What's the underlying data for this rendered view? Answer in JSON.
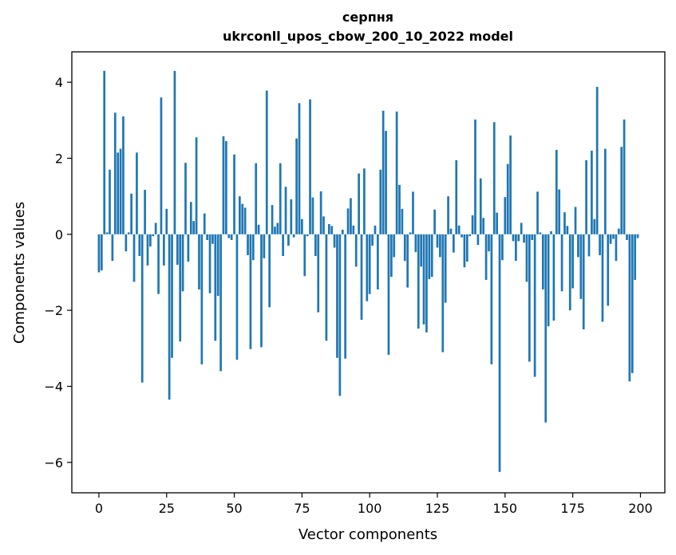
{
  "chart_data": {
    "type": "bar",
    "title": "серпня",
    "subtitle": "ukrconll_upos_cbow_200_10_2022 model",
    "xlabel": "Vector components",
    "ylabel": "Components values",
    "xlim": [
      -10,
      209
    ],
    "ylim": [
      -6.8,
      4.8
    ],
    "xticks": [
      0,
      25,
      50,
      75,
      100,
      125,
      150,
      175,
      200
    ],
    "xtick_labels": [
      "0",
      "25",
      "50",
      "75",
      "100",
      "125",
      "150",
      "175",
      "200"
    ],
    "yticks": [
      -6,
      -4,
      -2,
      0,
      2,
      4
    ],
    "ytick_labels": [
      "−6",
      "−4",
      "−2",
      "0",
      "2",
      "4"
    ],
    "grid": false,
    "bar_color": "#1f77b4",
    "x": [
      0,
      1,
      2,
      3,
      4,
      5,
      6,
      7,
      8,
      9,
      10,
      11,
      12,
      13,
      14,
      15,
      16,
      17,
      18,
      19,
      20,
      21,
      22,
      23,
      24,
      25,
      26,
      27,
      28,
      29,
      30,
      31,
      32,
      33,
      34,
      35,
      36,
      37,
      38,
      39,
      40,
      41,
      42,
      43,
      44,
      45,
      46,
      47,
      48,
      49,
      50,
      51,
      52,
      53,
      54,
      55,
      56,
      57,
      58,
      59,
      60,
      61,
      62,
      63,
      64,
      65,
      66,
      67,
      68,
      69,
      70,
      71,
      72,
      73,
      74,
      75,
      76,
      77,
      78,
      79,
      80,
      81,
      82,
      83,
      84,
      85,
      86,
      87,
      88,
      89,
      90,
      91,
      92,
      93,
      94,
      95,
      96,
      97,
      98,
      99,
      100,
      101,
      102,
      103,
      104,
      105,
      106,
      107,
      108,
      109,
      110,
      111,
      112,
      113,
      114,
      115,
      116,
      117,
      118,
      119,
      120,
      121,
      122,
      123,
      124,
      125,
      126,
      127,
      128,
      129,
      130,
      131,
      132,
      133,
      134,
      135,
      136,
      137,
      138,
      139,
      140,
      141,
      142,
      143,
      144,
      145,
      146,
      147,
      148,
      149,
      150,
      151,
      152,
      153,
      154,
      155,
      156,
      157,
      158,
      159,
      160,
      161,
      162,
      163,
      164,
      165,
      166,
      167,
      168,
      169,
      170,
      171,
      172,
      173,
      174,
      175,
      176,
      177,
      178,
      179,
      180,
      181,
      182,
      183,
      184,
      185,
      186,
      187,
      188,
      189,
      190,
      191,
      192,
      193,
      194,
      195,
      196,
      197,
      198,
      199
    ],
    "values": [
      -1.0,
      -0.95,
      4.3,
      0.05,
      1.7,
      -0.7,
      3.2,
      2.15,
      2.25,
      3.1,
      -0.45,
      0.05,
      1.07,
      -1.25,
      2.15,
      -0.57,
      -3.9,
      1.17,
      -0.82,
      -0.32,
      -0.05,
      0.3,
      -1.57,
      3.6,
      -0.82,
      0.67,
      -4.35,
      -3.25,
      4.3,
      -0.8,
      -2.82,
      -1.5,
      1.88,
      -0.72,
      0.85,
      0.35,
      2.55,
      -1.45,
      -3.42,
      0.55,
      -0.15,
      -1.55,
      -0.25,
      -2.8,
      -1.62,
      -3.6,
      2.58,
      2.45,
      -0.1,
      -0.15,
      2.1,
      -3.3,
      1.0,
      0.8,
      0.7,
      -0.55,
      -3.02,
      -0.68,
      1.87,
      0.25,
      -2.97,
      -0.63,
      3.78,
      -1.92,
      0.77,
      0.2,
      0.3,
      1.87,
      -0.57,
      1.25,
      -0.3,
      0.92,
      -0.08,
      2.52,
      3.45,
      0.4,
      -1.1,
      -0.05,
      3.55,
      0.97,
      -0.57,
      -2.05,
      1.13,
      0.47,
      -2.8,
      0.27,
      0.22,
      -0.35,
      -3.25,
      -4.25,
      0.12,
      -3.27,
      0.68,
      0.95,
      0.23,
      -0.85,
      1.6,
      -2.25,
      1.73,
      -1.76,
      -1.57,
      -0.3,
      0.23,
      -1.45,
      1.7,
      3.25,
      2.72,
      -3.17,
      -1.12,
      -0.6,
      3.23,
      1.3,
      0.67,
      -0.7,
      -1.4,
      0.05,
      1.12,
      -0.47,
      -2.48,
      -0.85,
      -2.37,
      -2.58,
      -1.18,
      -1.12,
      0.65,
      -0.35,
      -0.6,
      -3.1,
      -1.8,
      1.0,
      0.15,
      -0.48,
      1.95,
      0.23,
      -0.08,
      -0.87,
      -0.72,
      -0.05,
      0.5,
      3.02,
      -0.28,
      1.47,
      0.43,
      -1.2,
      -0.45,
      -3.42,
      2.95,
      0.57,
      -6.25,
      -0.68,
      0.98,
      1.85,
      2.6,
      -0.18,
      -0.7,
      -0.18,
      0.3,
      -0.22,
      -1.25,
      -3.35,
      -0.15,
      -3.75,
      1.12,
      0.05,
      -1.45,
      -4.95,
      -2.42,
      0.08,
      -2.27,
      2.22,
      1.18,
      -1.5,
      0.58,
      0.22,
      -2.0,
      -1.42,
      0.72,
      -0.6,
      -1.7,
      -2.5,
      1.95,
      -0.58,
      2.2,
      0.4,
      3.88,
      -0.55,
      -2.3,
      2.25,
      -1.88,
      -0.25,
      -0.12,
      -0.7,
      0.15,
      2.3,
      3.02,
      -0.15,
      -3.87,
      -3.65,
      -1.2,
      -0.1
    ]
  }
}
